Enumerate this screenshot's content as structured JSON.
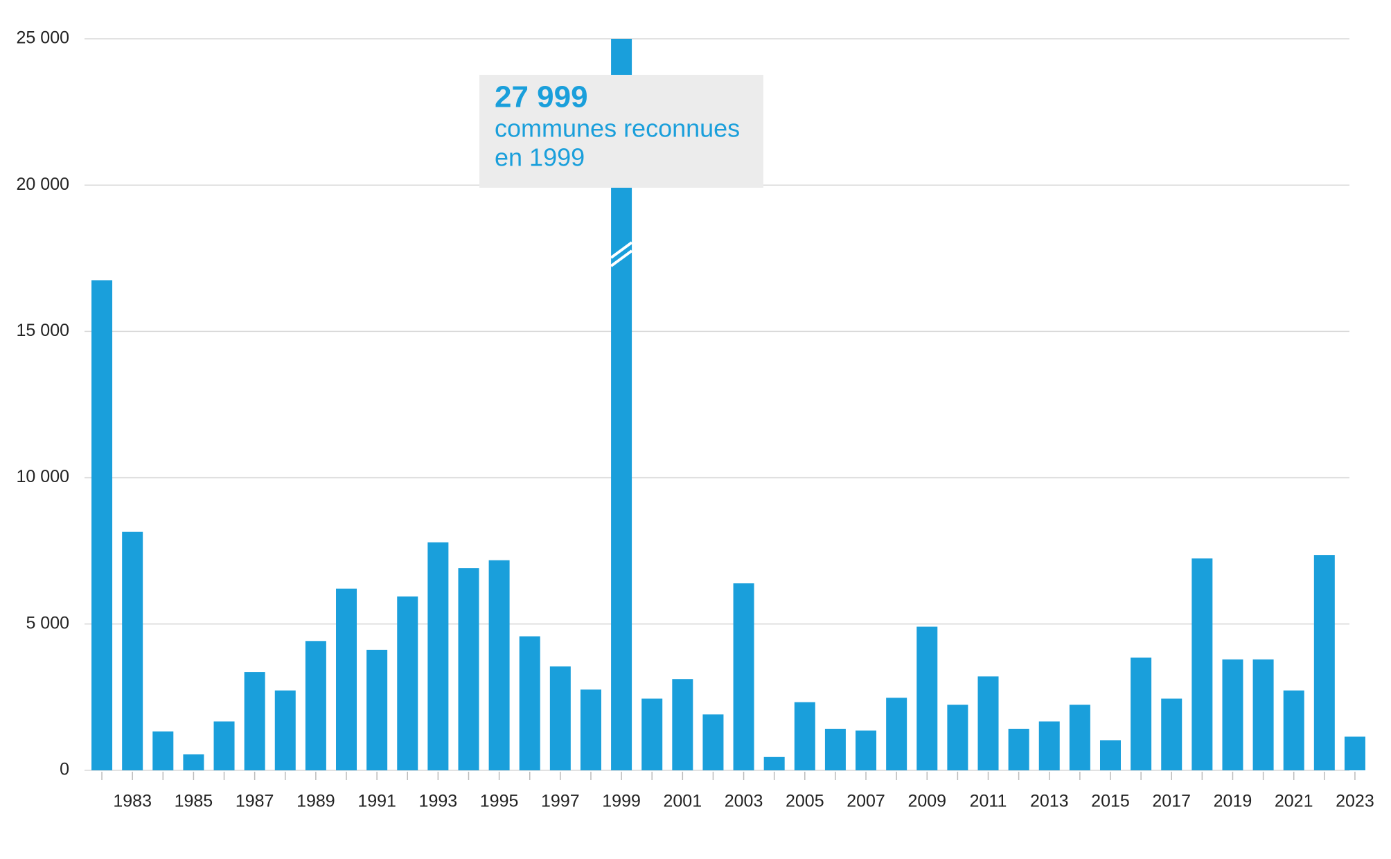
{
  "chart_data": {
    "type": "bar",
    "color": "#1a9fdb",
    "grid": true,
    "categories": [
      null,
      "1983",
      null,
      "1985",
      null,
      "1987",
      null,
      "1989",
      null,
      "1991",
      null,
      "1993",
      null,
      "1995",
      null,
      "1997",
      null,
      "1999",
      null,
      "2001",
      null,
      "2003",
      null,
      "2005",
      null,
      "2007",
      null,
      "2009",
      null,
      "2011",
      null,
      "2013",
      null,
      "2015",
      null,
      "2017",
      null,
      "2019",
      null,
      "2021",
      null,
      "2023"
    ],
    "values": [
      16750,
      8150,
      1330,
      545,
      1670,
      3360,
      2730,
      4420,
      6210,
      4120,
      5940,
      7790,
      6910,
      7180,
      4580,
      3550,
      2760,
      27999,
      2450,
      3120,
      1910,
      6390,
      455,
      2330,
      1420,
      1360,
      2480,
      4910,
      2240,
      3210,
      1420,
      1670,
      2240,
      1030,
      3850,
      2450,
      7240,
      3790,
      3790,
      2730,
      7360,
      1150
    ],
    "value_labels": [
      null,
      null,
      null,
      null,
      null,
      null,
      null,
      null,
      null,
      null,
      null,
      null,
      null,
      null,
      null,
      null,
      null,
      "27 999",
      null,
      null,
      null,
      null,
      null,
      null,
      null,
      null,
      null,
      null,
      null,
      null,
      null,
      null,
      null,
      null,
      null,
      null,
      null,
      null,
      null,
      null,
      null,
      null
    ],
    "annotation": [
      "communes reconnues",
      "en 1999"
    ],
    "ylim": [
      0,
      25000
    ],
    "yticks": [
      0,
      {
        "value": 5000,
        "label": "5 000"
      },
      {
        "value": 10000,
        "label": "10 000"
      },
      {
        "value": 15000,
        "label": "15 000"
      },
      {
        "value": 20000,
        "label": "20 000"
      },
      {
        "value": 25000,
        "label": "25 000"
      }
    ]
  }
}
